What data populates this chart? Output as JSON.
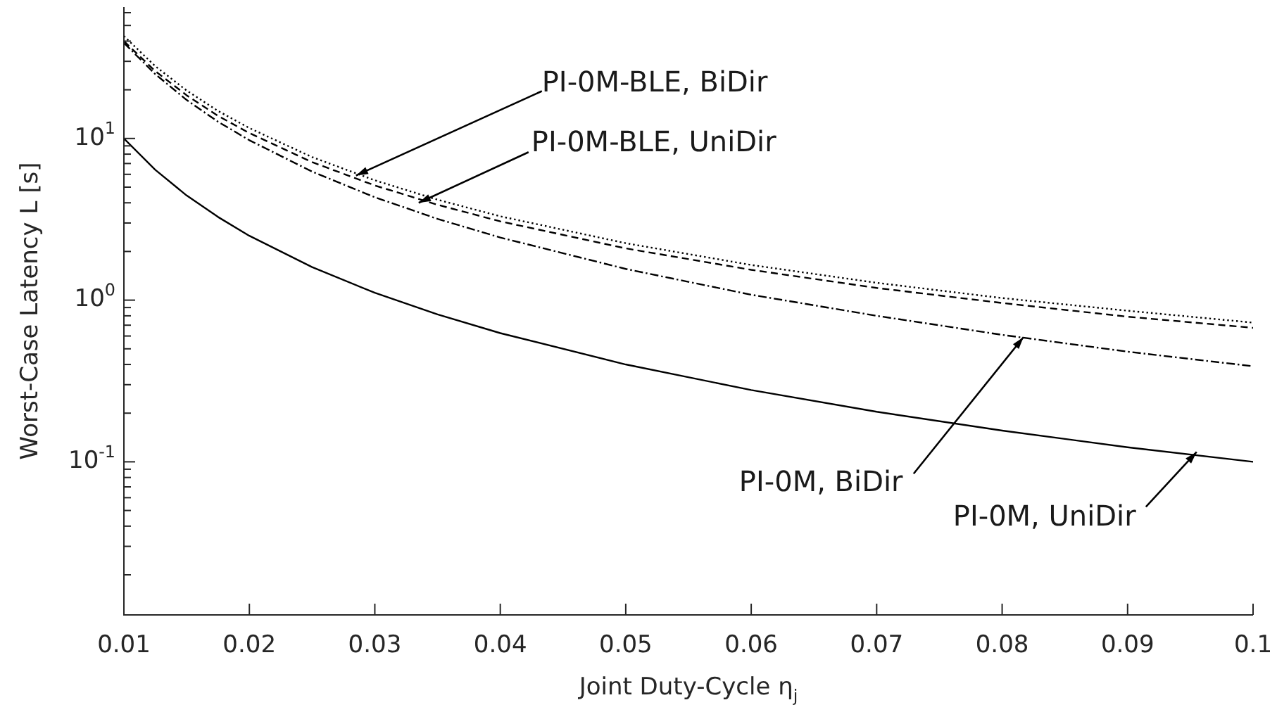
{
  "chart_data": {
    "type": "line",
    "xlabel": "Joint Duty-Cycle η$_{j}$",
    "ylabel": "Worst-Case Latency L [s]",
    "x": [
      0.01,
      0.0125,
      0.015,
      0.0175,
      0.02,
      0.025,
      0.03,
      0.035,
      0.04,
      0.05,
      0.06,
      0.07,
      0.08,
      0.09,
      0.1
    ],
    "series": [
      {
        "color": "#000000",
        "line_style": "dotted",
        "values": [
          43,
          28.0,
          19.8,
          14.8,
          11.6,
          7.67,
          5.51,
          4.18,
          3.3,
          2.25,
          1.65,
          1.28,
          1.03,
          0.86,
          0.726
        ]
      },
      {
        "color": "#000000",
        "line_style": "dashed",
        "values": [
          40,
          26.1,
          18.5,
          13.8,
          10.8,
          7.14,
          5.12,
          3.89,
          3.07,
          2.09,
          1.54,
          1.19,
          0.96,
          0.79,
          0.674
        ]
      },
      {
        "color": "#000000",
        "line_style": "dashdot",
        "values": [
          39,
          25.0,
          17.3,
          12.7,
          9.75,
          6.24,
          4.33,
          3.18,
          2.44,
          1.56,
          1.08,
          0.8,
          0.61,
          0.48,
          0.39
        ]
      },
      {
        "color": "#000000",
        "line_style": "solid",
        "values": [
          10,
          6.4,
          4.44,
          3.27,
          2.5,
          1.6,
          1.11,
          0.816,
          0.625,
          0.4,
          0.278,
          0.204,
          0.156,
          0.123,
          0.1
        ]
      }
    ],
    "log": "y",
    "grid": false,
    "legend": false,
    "marker": "none",
    "xlim": [
      0.01,
      0.1
    ],
    "xticks": [
      0.01,
      0.02,
      0.03,
      0.04,
      0.05,
      0.06,
      0.07,
      0.08,
      0.09,
      0.1
    ],
    "ylim": [
      0.0113,
      65
    ],
    "yticks": [
      {
        "value": 0.02,
        "label": null
      },
      {
        "value": 0.03,
        "label": null
      },
      {
        "value": 0.04,
        "label": null
      },
      {
        "value": 0.05,
        "label": null
      },
      {
        "value": 0.06,
        "label": null
      },
      {
        "value": 0.07,
        "label": null
      },
      {
        "value": 0.08,
        "label": null
      },
      {
        "value": 0.09,
        "label": null
      },
      {
        "value": 0.1,
        "label": "10$^{-1}$"
      },
      {
        "value": 0.2,
        "label": null
      },
      {
        "value": 0.3,
        "label": null
      },
      {
        "value": 0.4,
        "label": null
      },
      {
        "value": 0.5,
        "label": null
      },
      {
        "value": 0.6,
        "label": null
      },
      {
        "value": 0.7,
        "label": null
      },
      {
        "value": 0.8,
        "label": null
      },
      {
        "value": 0.9,
        "label": null
      },
      {
        "value": 1,
        "label": "10$^{0}$"
      },
      {
        "value": 2,
        "label": null
      },
      {
        "value": 3,
        "label": null
      },
      {
        "value": 4,
        "label": null
      },
      {
        "value": 5,
        "label": null
      },
      {
        "value": 6,
        "label": null
      },
      {
        "value": 7,
        "label": null
      },
      {
        "value": 8,
        "label": null
      },
      {
        "value": 9,
        "label": null
      },
      {
        "value": 10,
        "label": "10$^{1}$"
      },
      {
        "value": 20,
        "label": null
      },
      {
        "value": 30,
        "label": null
      },
      {
        "value": 40,
        "label": null
      },
      {
        "value": 50,
        "label": null
      },
      {
        "value": 60,
        "label": null
      }
    ],
    "annotations": [
      {
        "text": "PI-0M-BLE, BiDir",
        "x": 0.0285,
        "y": 5.9
      },
      {
        "text": "PI-0M-BLE, UniDir",
        "x": 0.0335,
        "y": 4.0
      },
      {
        "text": "PI-0M, BiDir",
        "x": 0.0817,
        "y": 0.59
      },
      {
        "text": "PI-0M, UniDir",
        "x": 0.0955,
        "y": 0.115
      }
    ]
  }
}
